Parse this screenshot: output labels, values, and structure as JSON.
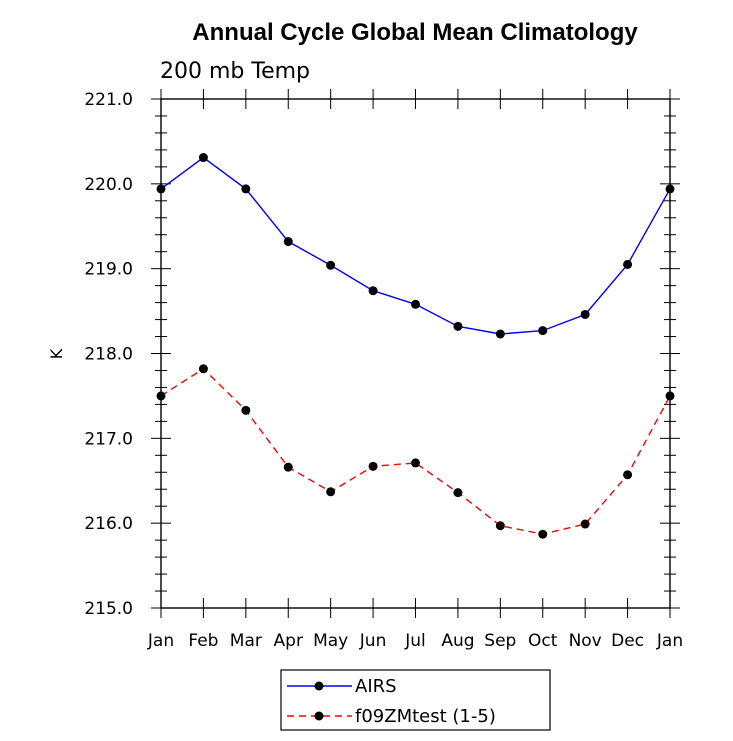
{
  "chart_data": {
    "type": "line",
    "title": "Annual Cycle Global Mean Climatology",
    "subtitle": "200 mb Temp",
    "xlabel": "",
    "ylabel": "K",
    "categories": [
      "Jan",
      "Feb",
      "Mar",
      "Apr",
      "May",
      "Jun",
      "Jul",
      "Aug",
      "Sep",
      "Oct",
      "Nov",
      "Dec",
      "Jan"
    ],
    "ylim": [
      215.0,
      221.0
    ],
    "yticks": [
      "215.0",
      "216.0",
      "217.0",
      "218.0",
      "219.0",
      "220.0",
      "221.0"
    ],
    "series": [
      {
        "name": "AIRS",
        "color": "#0000ff",
        "dash": "solid",
        "values": [
          219.94,
          220.31,
          219.94,
          219.32,
          219.04,
          218.74,
          218.58,
          218.32,
          218.23,
          218.27,
          218.46,
          219.05,
          219.94
        ]
      },
      {
        "name": "f09ZMtest (1-5)",
        "color": "#ff0000",
        "dash": "dashed",
        "values": [
          217.5,
          217.82,
          217.33,
          216.66,
          216.37,
          216.67,
          216.71,
          216.36,
          215.97,
          215.87,
          215.99,
          216.57,
          217.5
        ]
      }
    ],
    "legend_position": "bottom-center"
  }
}
